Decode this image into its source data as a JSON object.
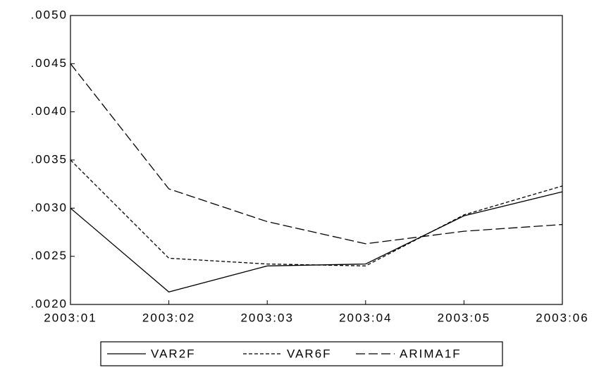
{
  "chart_data": {
    "type": "line",
    "categories": [
      "2003:01",
      "2003:02",
      "2003:03",
      "2003:04",
      "2003:05",
      "2003:06"
    ],
    "series": [
      {
        "name": "VAR2F",
        "color": "#000000",
        "dash": "solid",
        "values": [
          0.003,
          0.00213,
          0.0024,
          0.00242,
          0.00292,
          0.00317
        ]
      },
      {
        "name": "VAR6F",
        "color": "#000000",
        "dash": "short",
        "values": [
          0.0035,
          0.00248,
          0.00242,
          0.0024,
          0.00293,
          0.00323
        ]
      },
      {
        "name": "ARIMA1F",
        "color": "#000000",
        "dash": "long",
        "values": [
          0.0045,
          0.0032,
          0.00286,
          0.00263,
          0.00276,
          0.00283
        ]
      }
    ],
    "ylim": [
      0.002,
      0.005
    ],
    "yticks": [
      {
        "value": 0.002,
        "label": ".0020"
      },
      {
        "value": 0.0025,
        "label": ".0025"
      },
      {
        "value": 0.003,
        "label": ".0030"
      },
      {
        "value": 0.0035,
        "label": ".0035"
      },
      {
        "value": 0.004,
        "label": ".0040"
      },
      {
        "value": 0.0045,
        "label": ".0045"
      },
      {
        "value": 0.005,
        "label": ".0050"
      }
    ],
    "grid": false,
    "legend": "bottom"
  }
}
